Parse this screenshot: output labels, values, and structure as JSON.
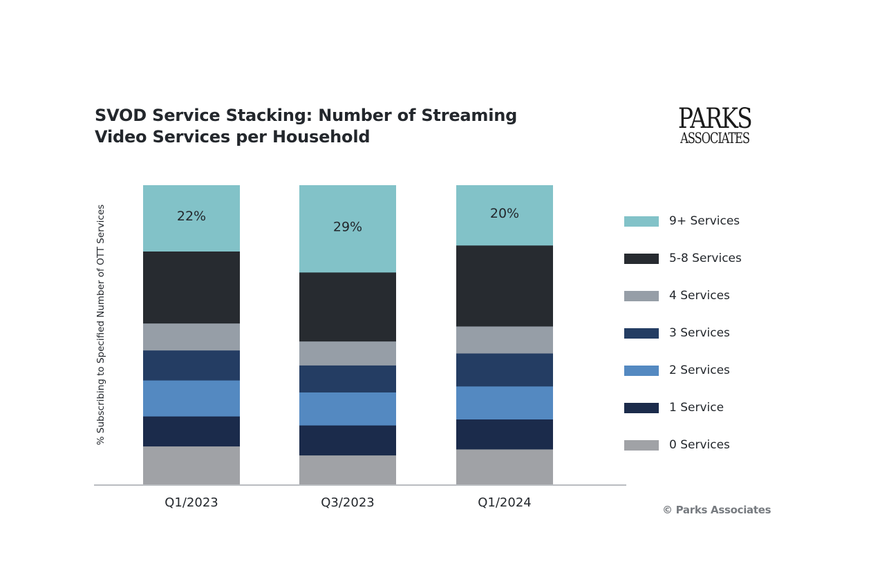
{
  "title": "SVOD Service Stacking: Number of Streaming Video Services per Household",
  "logo": {
    "top": "PARKS",
    "bottom": "ASSOCIATES"
  },
  "copyright": "© Parks Associates",
  "chart_data": {
    "type": "bar",
    "stacked": true,
    "title": "SVOD Service Stacking: Number of Streaming Video Services per Household",
    "xlabel": "",
    "ylabel": "% Subscribing to Specified Number of OTT Services",
    "ylim": [
      0,
      100
    ],
    "grid": false,
    "legend_position": "right",
    "categories": [
      "Q1/2023",
      "Q3/2023",
      "Q1/2024"
    ],
    "series": [
      {
        "name": "0 Services",
        "color": "#a0a2a6",
        "values": [
          13,
          10,
          12
        ]
      },
      {
        "name": "1 Service",
        "color": "#1b2b4b",
        "values": [
          10,
          10,
          10
        ]
      },
      {
        "name": "2 Services",
        "color": "#5489c1",
        "values": [
          12,
          11,
          11
        ]
      },
      {
        "name": "3 Services",
        "color": "#243d63",
        "values": [
          10,
          9,
          11
        ]
      },
      {
        "name": "4 Services",
        "color": "#969ea7",
        "values": [
          9,
          8,
          9
        ]
      },
      {
        "name": "5-8 Services",
        "color": "#272b30",
        "values": [
          24,
          23,
          27
        ]
      },
      {
        "name": "9+ Services",
        "color": "#82c2c8",
        "values": [
          22,
          29,
          20
        ],
        "labels": [
          "22%",
          "29%",
          "20%"
        ]
      }
    ],
    "legend": [
      "9+ Services",
      "5-8 Services",
      "4 Services",
      "3 Services",
      "2 Services",
      "1 Service",
      "0 Services"
    ]
  }
}
